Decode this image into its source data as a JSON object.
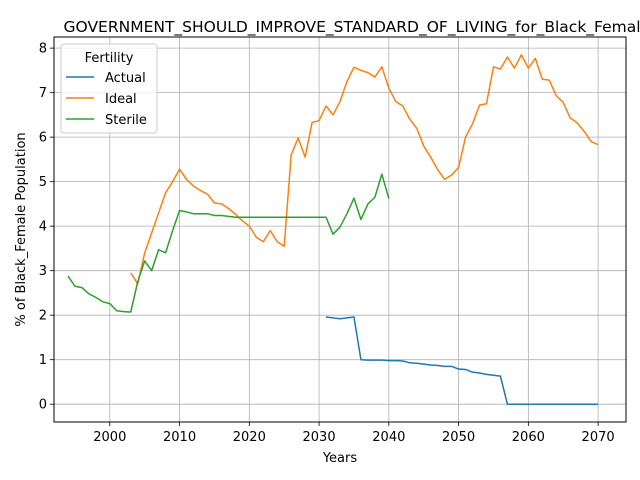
{
  "chart_data": {
    "type": "line",
    "title": "GOVERNMENT_SHOULD_IMPROVE_STANDARD_OF_LIVING_for_Black_Female_B",
    "xlabel": "Years",
    "ylabel": "% of Black_Female Population",
    "xlim": [
      1992,
      2074
    ],
    "ylim": [
      -0.4,
      8.25
    ],
    "xticks": [
      2000,
      2010,
      2020,
      2030,
      2040,
      2050,
      2060,
      2070
    ],
    "yticks": [
      0,
      1,
      2,
      3,
      4,
      5,
      6,
      7,
      8
    ],
    "grid": true,
    "legend": {
      "title": "Fertility",
      "placement": "top-left"
    },
    "series": [
      {
        "name": "Actual",
        "color": "#1f77b4",
        "x": [
          2031,
          2032,
          2033,
          2034,
          2035,
          2036,
          2037,
          2038,
          2039,
          2040,
          2041,
          2042,
          2043,
          2044,
          2045,
          2046,
          2047,
          2048,
          2049,
          2050,
          2051,
          2052,
          2053,
          2054,
          2055,
          2056,
          2057,
          2058,
          2059,
          2060,
          2061,
          2062,
          2063,
          2064,
          2065,
          2066,
          2067,
          2068,
          2069,
          2070
        ],
        "y": [
          1.96,
          1.94,
          1.92,
          1.94,
          1.96,
          1.0,
          0.99,
          0.99,
          0.99,
          0.98,
          0.98,
          0.97,
          0.93,
          0.92,
          0.9,
          0.88,
          0.87,
          0.85,
          0.85,
          0.79,
          0.78,
          0.72,
          0.7,
          0.67,
          0.65,
          0.63,
          0.0,
          0.0,
          0.0,
          0.0,
          0.0,
          0.0,
          0.0,
          0.0,
          0.0,
          0.0,
          0.0,
          0.0,
          0.0,
          0.0
        ]
      },
      {
        "name": "Ideal",
        "color": "#ff7f0e",
        "x": [
          2003,
          2004,
          2005,
          2006,
          2007,
          2008,
          2009,
          2010,
          2011,
          2012,
          2013,
          2014,
          2015,
          2016,
          2017,
          2018,
          2019,
          2020,
          2021,
          2022,
          2023,
          2024,
          2025,
          2026,
          2027,
          2028,
          2029,
          2030,
          2031,
          2032,
          2033,
          2034,
          2035,
          2036,
          2037,
          2038,
          2039,
          2040,
          2041,
          2042,
          2043,
          2044,
          2045,
          2046,
          2047,
          2048,
          2049,
          2050,
          2051,
          2052,
          2053,
          2054,
          2055,
          2056,
          2057,
          2058,
          2059,
          2060,
          2061,
          2062,
          2063,
          2064,
          2065,
          2066,
          2067,
          2068,
          2069,
          2070
        ],
        "y": [
          2.95,
          2.7,
          3.4,
          3.85,
          4.3,
          4.75,
          5.0,
          5.28,
          5.05,
          4.9,
          4.8,
          4.72,
          4.52,
          4.5,
          4.4,
          4.27,
          4.12,
          4.0,
          3.75,
          3.65,
          3.9,
          3.65,
          3.55,
          5.6,
          5.98,
          5.55,
          6.33,
          6.37,
          6.7,
          6.5,
          6.8,
          7.25,
          7.57,
          7.5,
          7.45,
          7.35,
          7.58,
          7.1,
          6.8,
          6.7,
          6.4,
          6.2,
          5.8,
          5.55,
          5.27,
          5.05,
          5.15,
          5.32,
          6.0,
          6.3,
          6.72,
          6.75,
          7.58,
          7.53,
          7.8,
          7.55,
          7.85,
          7.55,
          7.77,
          7.3,
          7.28,
          6.93,
          6.78,
          6.43,
          6.32,
          6.13,
          5.9,
          5.83
        ]
      },
      {
        "name": "Sterile",
        "color": "#2ca02c",
        "x": [
          1994,
          1995,
          1996,
          1997,
          1998,
          1999,
          2000,
          2001,
          2002,
          2003,
          2004,
          2005,
          2006,
          2007,
          2008,
          2009,
          2010,
          2011,
          2012,
          2013,
          2014,
          2015,
          2016,
          2017,
          2018,
          2019,
          2020,
          2021,
          2022,
          2023,
          2024,
          2025,
          2026,
          2027,
          2028,
          2029,
          2030,
          2031,
          2032,
          2033,
          2034,
          2035,
          2036,
          2037,
          2038,
          2039,
          2040
        ],
        "y": [
          2.88,
          2.65,
          2.62,
          2.48,
          2.4,
          2.3,
          2.26,
          2.1,
          2.08,
          2.07,
          2.75,
          3.22,
          3.0,
          3.47,
          3.4,
          3.9,
          4.35,
          4.32,
          4.28,
          4.28,
          4.28,
          4.24,
          4.24,
          4.22,
          4.2,
          4.2,
          4.2,
          4.2,
          4.2,
          4.2,
          4.2,
          4.2,
          4.2,
          4.2,
          4.2,
          4.2,
          4.2,
          4.2,
          3.82,
          3.98,
          4.28,
          4.63,
          4.15,
          4.5,
          4.65,
          5.17,
          4.62
        ]
      }
    ]
  }
}
